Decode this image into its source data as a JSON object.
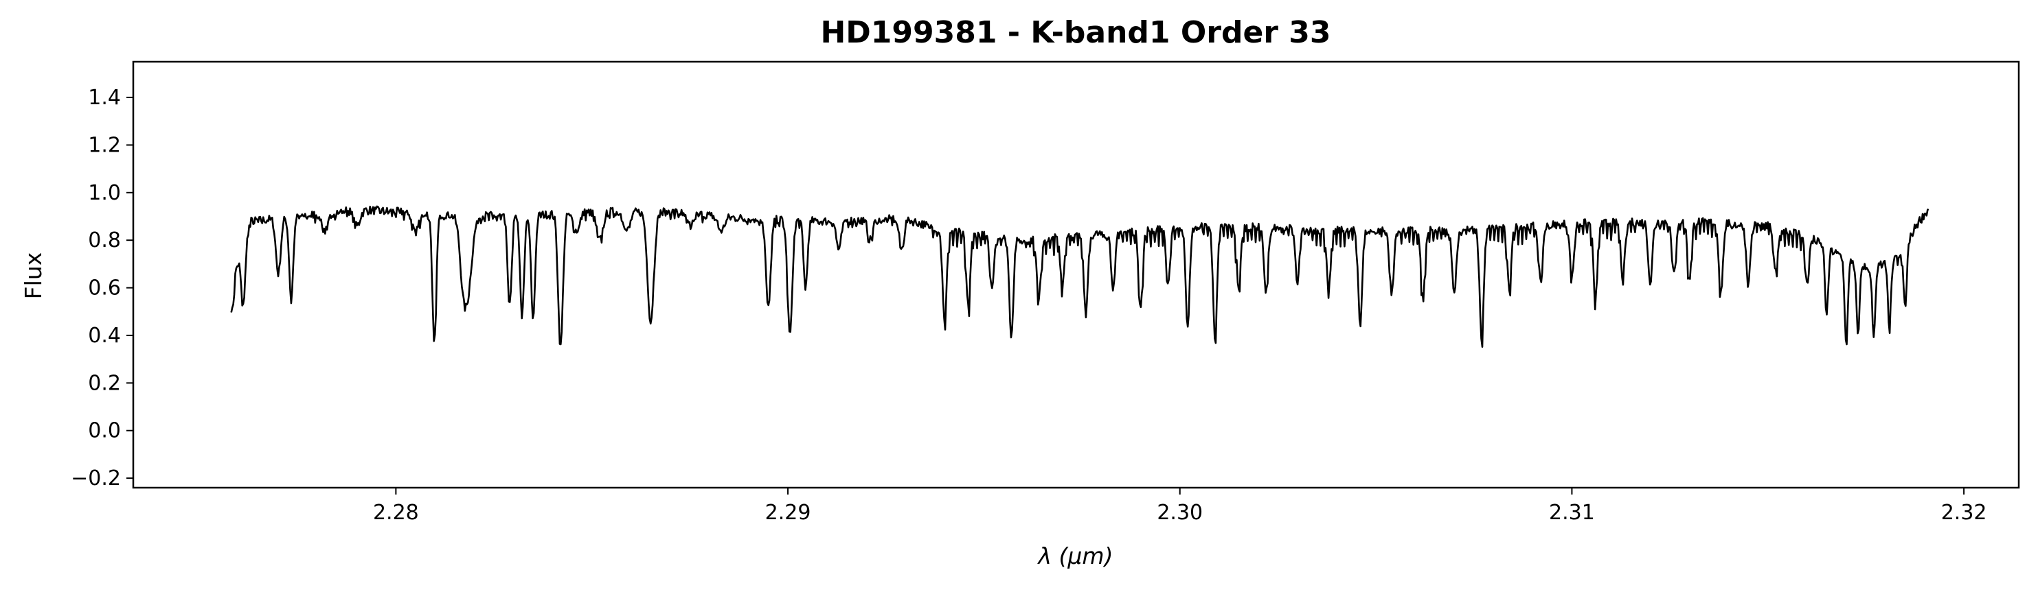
{
  "chart_data": {
    "type": "line",
    "title": "HD199381 - K-band1 Order 33",
    "xlabel": "λ (μm)",
    "ylabel": "Flux",
    "xlim": [
      2.2733,
      2.3214
    ],
    "ylim": [
      -0.24,
      1.55
    ],
    "x_ticks": [
      2.28,
      2.29,
      2.3,
      2.31,
      2.32
    ],
    "x_tick_labels": [
      "2.28",
      "2.29",
      "2.30",
      "2.31",
      "2.32"
    ],
    "y_ticks": [
      -0.2,
      0.0,
      0.2,
      0.4,
      0.6,
      0.8,
      1.0,
      1.2,
      1.4
    ],
    "y_tick_labels": [
      "−0.2",
      "0.0",
      "0.2",
      "0.4",
      "0.6",
      "0.8",
      "1.0",
      "1.2",
      "1.4"
    ],
    "grid": false,
    "legend": "none",
    "line_color": "#000000",
    "series": [
      {
        "x_start": 2.2758,
        "x_end": 2.3191,
        "continuum_points": [
          [
            2.2758,
            0.62
          ],
          [
            2.2763,
            0.88
          ],
          [
            2.2775,
            0.9
          ],
          [
            2.279,
            0.93
          ],
          [
            2.281,
            0.91
          ],
          [
            2.283,
            0.9
          ],
          [
            2.285,
            0.92
          ],
          [
            2.287,
            0.92
          ],
          [
            2.289,
            0.89
          ],
          [
            2.291,
            0.88
          ],
          [
            2.293,
            0.89
          ],
          [
            2.294,
            0.84
          ],
          [
            2.296,
            0.8
          ],
          [
            2.299,
            0.84
          ],
          [
            2.301,
            0.86
          ],
          [
            2.304,
            0.84
          ],
          [
            2.307,
            0.84
          ],
          [
            2.31,
            0.87
          ],
          [
            2.313,
            0.88
          ],
          [
            2.315,
            0.86
          ],
          [
            2.316,
            0.82
          ],
          [
            2.3168,
            0.74
          ],
          [
            2.3176,
            0.68
          ],
          [
            2.3184,
            0.73
          ],
          [
            2.3188,
            0.87
          ],
          [
            2.3191,
            0.93
          ]
        ],
        "absorption_lines": [
          [
            2.27582,
            0.5,
            4e-05
          ],
          [
            2.2761,
            0.52,
            5e-05
          ],
          [
            2.277,
            0.66,
            6e-05
          ],
          [
            2.27733,
            0.55,
            5e-05
          ],
          [
            2.2782,
            0.84,
            8e-05
          ],
          [
            2.279,
            0.86,
            8e-05
          ],
          [
            2.2805,
            0.84,
            8e-05
          ],
          [
            2.28098,
            0.36,
            5e-05
          ],
          [
            2.2817,
            0.84,
            6e-05
          ],
          [
            2.2818,
            0.54,
            0.00012
          ],
          [
            2.2829,
            0.52,
            5e-05
          ],
          [
            2.28322,
            0.48,
            5e-05
          ],
          [
            2.2835,
            0.47,
            5e-05
          ],
          [
            2.2842,
            0.35,
            6e-05
          ],
          [
            2.2846,
            0.84,
            8e-05
          ],
          [
            2.2852,
            0.8,
            8e-05
          ],
          [
            2.2859,
            0.84,
            8e-05
          ],
          [
            2.2865,
            0.46,
            8e-05
          ],
          [
            2.2875,
            0.86,
            8e-05
          ],
          [
            2.2883,
            0.84,
            8e-05
          ],
          [
            2.2895,
            0.52,
            6e-05
          ],
          [
            2.29005,
            0.4,
            6e-05
          ],
          [
            2.29045,
            0.6,
            5e-05
          ],
          [
            2.2913,
            0.76,
            6e-05
          ],
          [
            2.2921,
            0.8,
            6e-05
          ],
          [
            2.2929,
            0.76,
            6e-05
          ],
          [
            2.294,
            0.45,
            5e-05
          ],
          [
            2.2946,
            0.52,
            5e-05
          ],
          [
            2.2952,
            0.6,
            5e-05
          ],
          [
            2.2957,
            0.4,
            5e-05
          ],
          [
            2.2964,
            0.55,
            5e-05
          ],
          [
            2.297,
            0.62,
            5e-05
          ],
          [
            2.2976,
            0.5,
            5e-05
          ],
          [
            2.2983,
            0.6,
            5e-05
          ],
          [
            2.299,
            0.52,
            5e-05
          ],
          [
            2.2997,
            0.62,
            5e-05
          ],
          [
            2.3002,
            0.45,
            5e-05
          ],
          [
            2.3009,
            0.39,
            5e-05
          ],
          [
            2.3015,
            0.6,
            5e-05
          ],
          [
            2.3022,
            0.58,
            5e-05
          ],
          [
            2.303,
            0.62,
            5e-05
          ],
          [
            2.3038,
            0.6,
            5e-05
          ],
          [
            2.3046,
            0.46,
            5e-05
          ],
          [
            2.3054,
            0.57,
            5e-05
          ],
          [
            2.3062,
            0.55,
            5e-05
          ],
          [
            2.307,
            0.58,
            5e-05
          ],
          [
            2.3077,
            0.37,
            5e-05
          ],
          [
            2.3084,
            0.6,
            5e-05
          ],
          [
            2.3092,
            0.62,
            5e-05
          ],
          [
            2.31,
            0.64,
            5e-05
          ],
          [
            2.3106,
            0.55,
            5e-05
          ],
          [
            2.3113,
            0.64,
            5e-05
          ],
          [
            2.312,
            0.62,
            5e-05
          ],
          [
            2.3126,
            0.66,
            5e-05
          ],
          [
            2.313,
            0.64,
            5e-05
          ],
          [
            2.3138,
            0.58,
            5e-05
          ],
          [
            2.3145,
            0.62,
            5e-05
          ],
          [
            2.3152,
            0.66,
            5e-05
          ],
          [
            2.316,
            0.62,
            5e-05
          ],
          [
            2.3165,
            0.48,
            4e-05
          ],
          [
            2.317,
            0.36,
            4e-05
          ],
          [
            2.3173,
            0.4,
            4e-05
          ],
          [
            2.3177,
            0.41,
            4e-05
          ],
          [
            2.3181,
            0.44,
            4e-05
          ],
          [
            2.3185,
            0.52,
            4e-05
          ]
        ]
      }
    ]
  }
}
